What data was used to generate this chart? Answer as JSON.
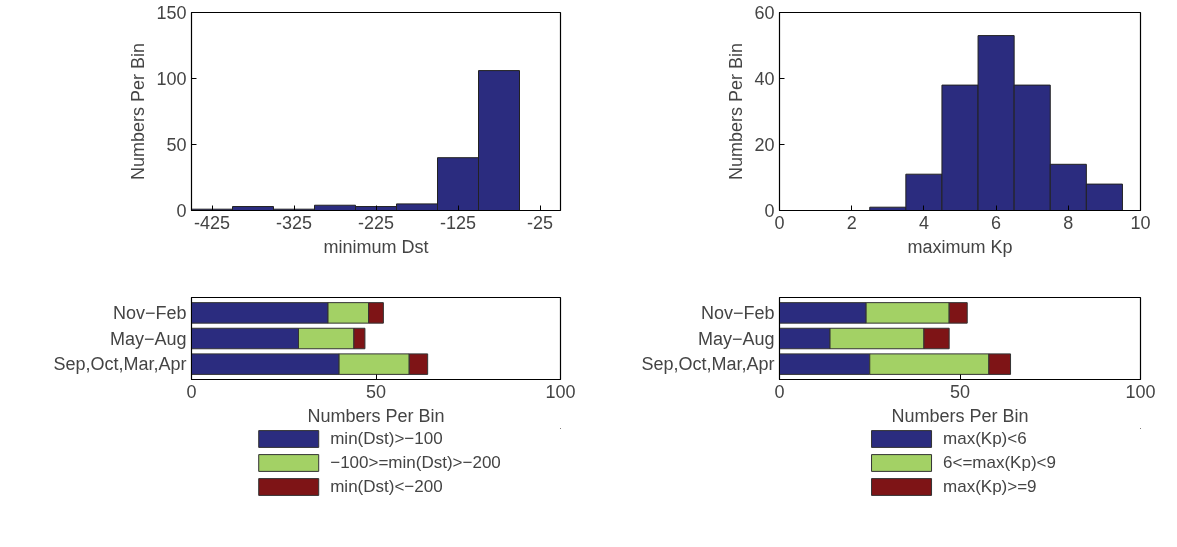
{
  "chart_data": [
    {
      "type": "histogram",
      "bins": [
        -450,
        -400,
        -350,
        -300,
        -250,
        -200,
        -150,
        -100,
        -50
      ],
      "values": [
        1,
        3,
        1,
        4,
        3,
        5,
        40,
        106
      ],
      "color": "#2b2c7f",
      "xlim": [
        -450,
        0
      ],
      "xticks": [
        -425,
        -325,
        -225,
        -125,
        -25
      ],
      "ylim": [
        0,
        150
      ],
      "yticks": [
        0,
        50,
        100,
        150
      ],
      "xlabel": "minimum Dst",
      "ylabel": "Numbers Per Bin"
    },
    {
      "type": "histogram",
      "bins": [
        2.5,
        3.5,
        4.5,
        5.5,
        6.5,
        7.5,
        8.5,
        9.5
      ],
      "values": [
        1,
        11,
        38,
        53,
        38,
        14,
        8
      ],
      "color": "#2b2c7f",
      "xlim": [
        0,
        10
      ],
      "xticks": [
        0,
        2,
        4,
        6,
        8,
        10
      ],
      "ylim": [
        0,
        60
      ],
      "yticks": [
        0,
        20,
        40,
        60
      ],
      "xlabel": "maximum Kp",
      "ylabel": "Numbers Per Bin"
    },
    {
      "type": "bar",
      "orientation": "horizontal",
      "stacked": true,
      "categories": [
        "Nov−Feb",
        "May−Aug",
        "Sep,Oct,Mar,Apr"
      ],
      "xlim": [
        0,
        100
      ],
      "xticks": [
        0,
        50,
        100
      ],
      "xlabel": "Numbers Per Bin",
      "legend": "bottom",
      "series": [
        {
          "name": "min(Dst)>−100",
          "color": "#2b2c7f",
          "values": [
            37,
            29,
            40
          ]
        },
        {
          "name": "−100>=min(Dst)>−200",
          "color": "#a3d165",
          "values": [
            11,
            15,
            19
          ]
        },
        {
          "name": "min(Dst)<−200",
          "color": "#7e1416",
          "values": [
            4,
            3,
            5
          ]
        }
      ]
    },
    {
      "type": "bar",
      "orientation": "horizontal",
      "stacked": true,
      "categories": [
        "Nov−Feb",
        "May−Aug",
        "Sep,Oct,Mar,Apr"
      ],
      "xlim": [
        0,
        100
      ],
      "xticks": [
        0,
        50,
        100
      ],
      "xlabel": "Numbers Per Bin",
      "legend": "bottom",
      "series": [
        {
          "name": "max(Kp)<6",
          "color": "#2b2c7f",
          "values": [
            24,
            14,
            25
          ]
        },
        {
          "name": "6<=max(Kp)<9",
          "color": "#a3d165",
          "values": [
            23,
            26,
            33
          ]
        },
        {
          "name": "max(Kp)>=9",
          "color": "#7e1416",
          "values": [
            5,
            7,
            6
          ]
        }
      ]
    }
  ]
}
